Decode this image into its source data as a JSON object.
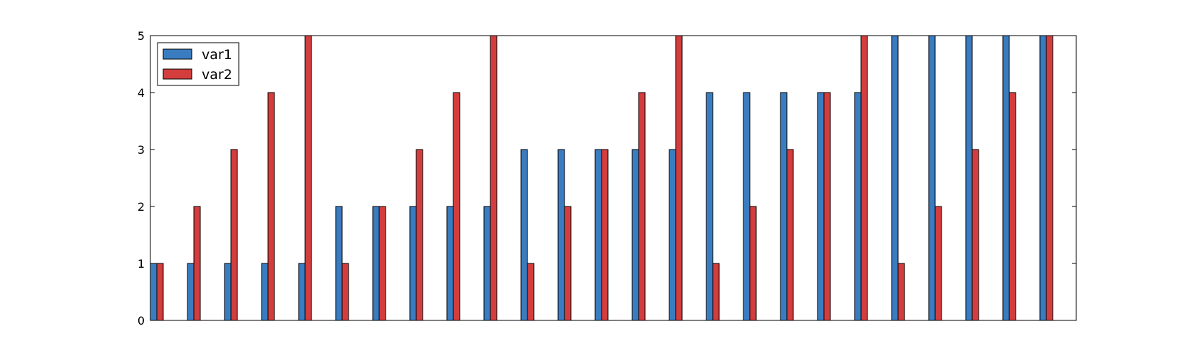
{
  "chart_data": {
    "type": "bar",
    "title": "",
    "xlabel": "",
    "ylabel": "",
    "ylim": [
      0,
      5
    ],
    "yticks": [
      0,
      1,
      2,
      3,
      4,
      5
    ],
    "grid": false,
    "legend_position": "top-left",
    "categories_count": 25,
    "series": [
      {
        "name": "var1",
        "color": "#3a7cc0",
        "values": [
          1,
          1,
          1,
          1,
          1,
          2,
          2,
          2,
          2,
          2,
          3,
          3,
          3,
          3,
          3,
          4,
          4,
          4,
          4,
          4,
          5,
          5,
          5,
          5,
          5
        ]
      },
      {
        "name": "var2",
        "color": "#d43d3d",
        "values": [
          1,
          2,
          3,
          4,
          5,
          1,
          2,
          3,
          4,
          5,
          1,
          2,
          3,
          4,
          5,
          1,
          2,
          3,
          4,
          5,
          1,
          2,
          3,
          4,
          5
        ]
      }
    ]
  }
}
